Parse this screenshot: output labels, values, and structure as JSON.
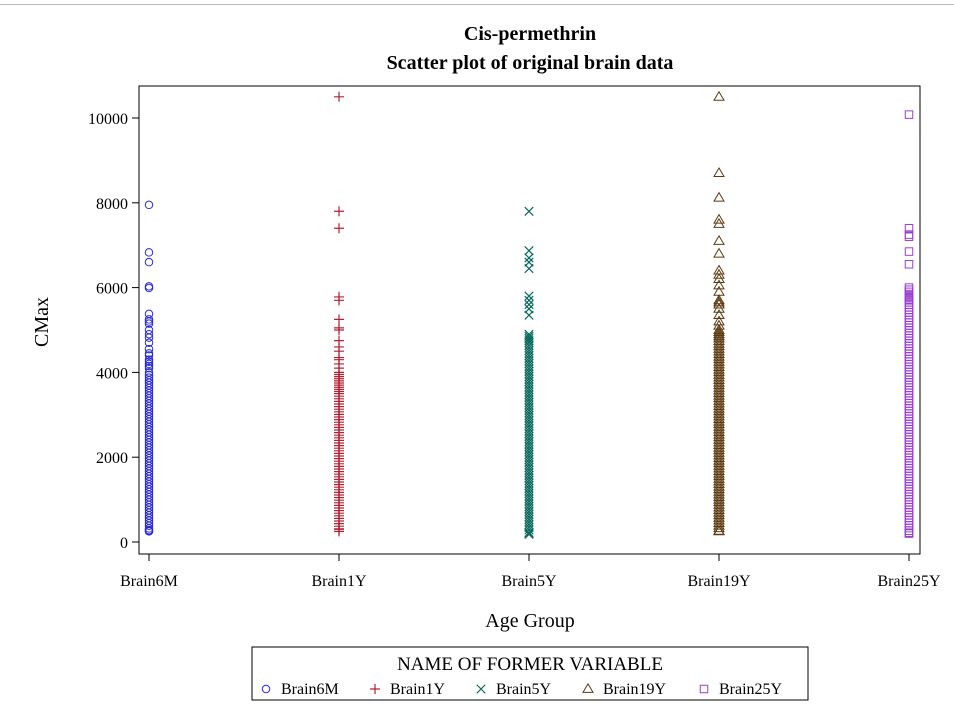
{
  "chart_data": {
    "type": "scatter",
    "title": "Cis-permethrin",
    "subtitle": "Scatter plot of original brain data",
    "xlabel": "Age Group",
    "ylabel": "CMax",
    "categories": [
      "Brain6M",
      "Brain1Y",
      "Brain5Y",
      "Brain19Y",
      "Brain25Y"
    ],
    "ylim": [
      0,
      10800
    ],
    "yticks": [
      0,
      2000,
      4000,
      6000,
      8000,
      10000
    ],
    "grid": false,
    "legend": {
      "title": "NAME OF FORMER VARIABLE",
      "placement": "bottom"
    },
    "series": [
      {
        "name": "Brain6M",
        "category": "Brain6M",
        "marker": "circle",
        "color": "#2a2ad8",
        "dense_range": [
          250,
          4000
        ],
        "values": [
          7950,
          6830,
          6600,
          6030,
          5990,
          5380,
          5250,
          5200,
          5150,
          5000,
          4900,
          4820,
          4700,
          4550,
          4450,
          4400,
          4300,
          4250,
          4200,
          4150,
          4100,
          280,
          250
        ]
      },
      {
        "name": "Brain1Y",
        "category": "Brain1Y",
        "marker": "plus",
        "color": "#b22234",
        "dense_range": [
          300,
          3500
        ],
        "values": [
          10500,
          7800,
          7400,
          5780,
          5700,
          5250,
          5050,
          5000,
          4750,
          4600,
          4500,
          4350,
          4300,
          4200,
          4100,
          4000,
          3950,
          3900,
          3850,
          3800,
          3750,
          3700,
          3650,
          3600,
          3550,
          300,
          250
        ]
      },
      {
        "name": "Brain5Y",
        "category": "Brain5Y",
        "marker": "x",
        "color": "#0a6b5e",
        "dense_range": [
          200,
          4700
        ],
        "values": [
          7800,
          6870,
          6700,
          6600,
          6450,
          5800,
          5700,
          5600,
          5500,
          5350,
          4900,
          4850,
          4800,
          4750,
          200,
          180
        ]
      },
      {
        "name": "Brain19Y",
        "category": "Brain19Y",
        "marker": "triangle",
        "color": "#5c3a10",
        "dense_range": [
          250,
          4800
        ],
        "values": [
          10500,
          8700,
          8120,
          7600,
          7500,
          7100,
          6800,
          6400,
          6300,
          6200,
          6050,
          5900,
          5700,
          5650,
          5600,
          5500,
          5350,
          5200,
          5100,
          5000,
          4950,
          4900,
          4850,
          250
        ]
      },
      {
        "name": "Brain25Y",
        "category": "Brain25Y",
        "marker": "square",
        "color": "#9a3fcf",
        "dense_range": [
          200,
          5600
        ],
        "values": [
          10080,
          7400,
          7250,
          7200,
          6850,
          6550,
          6000,
          5950,
          5900,
          5850,
          5800,
          5750,
          5700,
          5650,
          220,
          200
        ]
      }
    ]
  }
}
